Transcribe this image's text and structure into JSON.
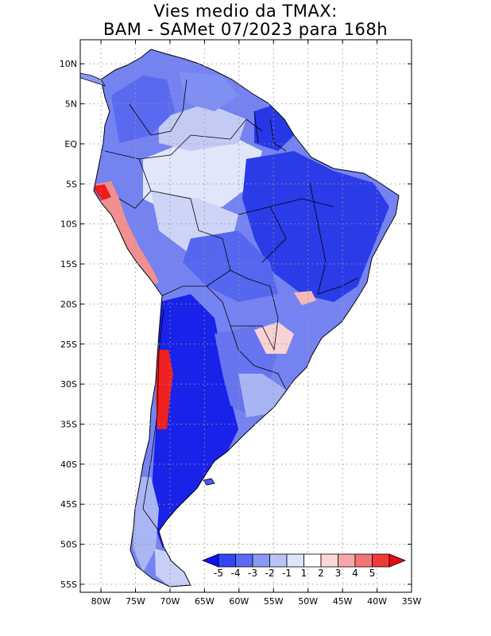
{
  "title": {
    "line1": "Vies medio da TMAX:",
    "line2": "BAM - SAMet 07/2023  para 168h"
  },
  "map": {
    "region": "South America",
    "x_axis": {
      "min_lon": -83,
      "max_lon": -35,
      "ticks": [
        {
          "lon": -80,
          "label": "80W"
        },
        {
          "lon": -75,
          "label": "75W"
        },
        {
          "lon": -70,
          "label": "70W"
        },
        {
          "lon": -65,
          "label": "65W"
        },
        {
          "lon": -60,
          "label": "60W"
        },
        {
          "lon": -55,
          "label": "55W"
        },
        {
          "lon": -50,
          "label": "50W"
        },
        {
          "lon": -45,
          "label": "45W"
        },
        {
          "lon": -40,
          "label": "40W"
        },
        {
          "lon": -35,
          "label": "35W"
        }
      ]
    },
    "y_axis": {
      "min_lat": -56,
      "max_lat": 13,
      "ticks": [
        {
          "lat": 10,
          "label": "10N"
        },
        {
          "lat": 5,
          "label": "5N"
        },
        {
          "lat": 0,
          "label": "EQ"
        },
        {
          "lat": -5,
          "label": "5S"
        },
        {
          "lat": -10,
          "label": "10S"
        },
        {
          "lat": -15,
          "label": "15S"
        },
        {
          "lat": -20,
          "label": "20S"
        },
        {
          "lat": -25,
          "label": "25S"
        },
        {
          "lat": -30,
          "label": "30S"
        },
        {
          "lat": -35,
          "label": "35S"
        },
        {
          "lat": -40,
          "label": "40S"
        },
        {
          "lat": -45,
          "label": "45S"
        },
        {
          "lat": -50,
          "label": "50S"
        },
        {
          "lat": -55,
          "label": "55S"
        }
      ]
    }
  },
  "colorbar": {
    "labels": [
      "-5",
      "-4",
      "-3",
      "-2",
      "-1",
      "1",
      "2",
      "3",
      "4",
      "5"
    ],
    "colors": [
      "#0a14f0",
      "#3346f5",
      "#5a6cf5",
      "#8a99f5",
      "#b9c3f5",
      "#dfe4fa",
      "#ffffff",
      "#fbd8d8",
      "#f6a8a8",
      "#f27676",
      "#ee3a3a",
      "#e80c0c"
    ]
  },
  "colors": {
    "strong_negative": "#1a22e6",
    "moderate_negative": "#5868f0",
    "weak_negative": "#c5cdf5",
    "near_zero": "#f4f6ff",
    "positive": "#f4aaaa",
    "strong_positive": "#ee2020",
    "grid": "#999999"
  }
}
